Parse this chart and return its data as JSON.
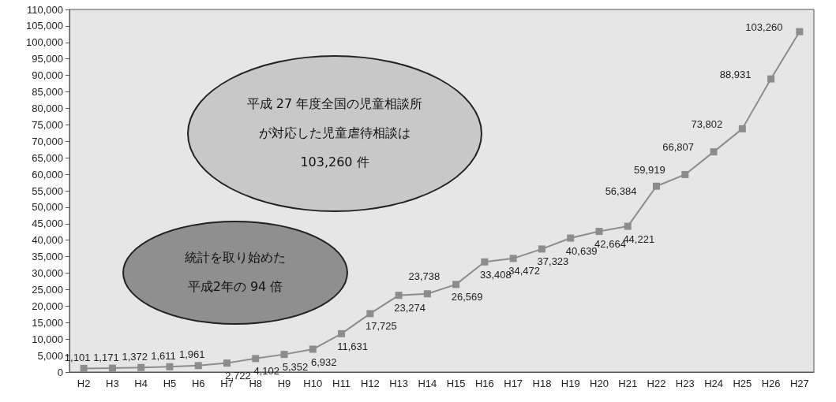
{
  "chart_data": {
    "type": "line",
    "categories": [
      "H2",
      "H3",
      "H4",
      "H5",
      "H6",
      "H7",
      "H8",
      "H9",
      "H10",
      "H11",
      "H12",
      "H13",
      "H14",
      "H15",
      "H16",
      "H17",
      "H18",
      "H19",
      "H20",
      "H21",
      "H22",
      "H23",
      "H24",
      "H25",
      "H26",
      "H27"
    ],
    "series": [
      {
        "color": "#8c8c8c",
        "values": [
          1101,
          1171,
          1372,
          1611,
          1961,
          2722,
          4102,
          5352,
          6932,
          11631,
          17725,
          23274,
          23738,
          26569,
          33408,
          34472,
          37323,
          40639,
          42664,
          44221,
          56384,
          59919,
          66807,
          73802,
          88931,
          103260
        ]
      }
    ],
    "value_labels": [
      "1,101",
      "1,171",
      "1,372",
      "1,611",
      "1,961",
      "2,722",
      "4,102",
      "5,352",
      "6,932",
      "11,631",
      "17,725",
      "23,274",
      "23,738",
      "26,569",
      "33,408",
      "34,472",
      "37,323",
      "40,639",
      "42,664",
      "44,221",
      "56,384",
      "59,919",
      "66,807",
      "73,802",
      "88,931",
      "103,260"
    ],
    "ylim": [
      0,
      110000
    ],
    "yticks": [
      {
        "value": 0,
        "label": "0"
      },
      {
        "value": 5000,
        "label": "5,000"
      },
      {
        "value": 10000,
        "label": "10,000"
      },
      {
        "value": 15000,
        "label": "15,000"
      },
      {
        "value": 20000,
        "label": "20,000"
      },
      {
        "value": 25000,
        "label": "25,000"
      },
      {
        "value": 30000,
        "label": "30,000"
      },
      {
        "value": 35000,
        "label": "35,000"
      },
      {
        "value": 40000,
        "label": "40,000"
      },
      {
        "value": 45000,
        "label": "45,000"
      },
      {
        "value": 50000,
        "label": "50,000"
      },
      {
        "value": 55000,
        "label": "55,000"
      },
      {
        "value": 60000,
        "label": "60,000"
      },
      {
        "value": 65000,
        "label": "65,000"
      },
      {
        "value": 70000,
        "label": "70,000"
      },
      {
        "value": 75000,
        "label": "75,000"
      },
      {
        "value": 80000,
        "label": "80,000"
      },
      {
        "value": 85000,
        "label": "85,000"
      },
      {
        "value": 90000,
        "label": "90,000"
      },
      {
        "value": 95000,
        "label": "95,000"
      },
      {
        "value": 100000,
        "label": "100,000"
      },
      {
        "value": 105000,
        "label": "105,000"
      },
      {
        "value": 110000,
        "label": "110,000"
      }
    ],
    "marker": "square",
    "line_style": "solid",
    "grid": false,
    "annotations": [
      "平成 27 年度全国の児童相談所が対応した児童虐待相談は103,260 件",
      "統計を取り始めた平成2年の 94 倍"
    ]
  }
}
